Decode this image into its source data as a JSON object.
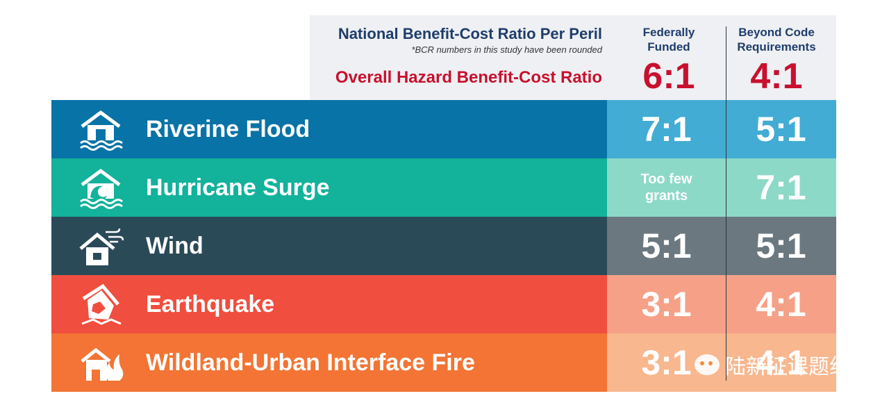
{
  "header": {
    "national_title": "National Benefit-Cost Ratio Per Peril",
    "note": "*BCR numbers in this study have been rounded",
    "overall_label": "Overall Hazard Benefit-Cost Ratio",
    "col1_title": "Federally Funded",
    "col2_title": "Beyond Code Requirements",
    "overall_col1": "6:1",
    "overall_col2": "4:1"
  },
  "watermark": "陆新征课题组",
  "colors": {
    "riverine_name": "#0873a6",
    "riverine_val": "#42acd4",
    "hurricane_name": "#12b29b",
    "hurricane_val": "#8dd9c8",
    "wind_name": "#2b4a58",
    "wind_val": "#6b7880",
    "earthquake_name": "#f04e3e",
    "earthquake_val": "#f6a187",
    "fire_name": "#f37434",
    "fire_val": "#f8b78e",
    "red": "#c8102e",
    "navy": "#1f3d6b"
  },
  "chart_data": {
    "type": "table",
    "title": "National Benefit-Cost Ratio Per Peril",
    "columns": [
      "Federally Funded",
      "Beyond Code Requirements"
    ],
    "overall": {
      "label": "Overall Hazard Benefit-Cost Ratio",
      "values": [
        "6:1",
        "4:1"
      ]
    },
    "rows": [
      {
        "peril": "Riverine Flood",
        "icon": "house-flood-icon",
        "values": [
          "7:1",
          "5:1"
        ]
      },
      {
        "peril": "Hurricane Surge",
        "icon": "house-wave-icon",
        "values": [
          "Too few grants",
          "7:1"
        ]
      },
      {
        "peril": "Wind",
        "icon": "house-wind-icon",
        "values": [
          "5:1",
          "5:1"
        ]
      },
      {
        "peril": "Earthquake",
        "icon": "house-earthquake-icon",
        "values": [
          "3:1",
          "4:1"
        ]
      },
      {
        "peril": "Wildland-Urban Interface Fire",
        "icon": "house-fire-icon",
        "values": [
          "3:1",
          "4:1"
        ]
      }
    ]
  }
}
